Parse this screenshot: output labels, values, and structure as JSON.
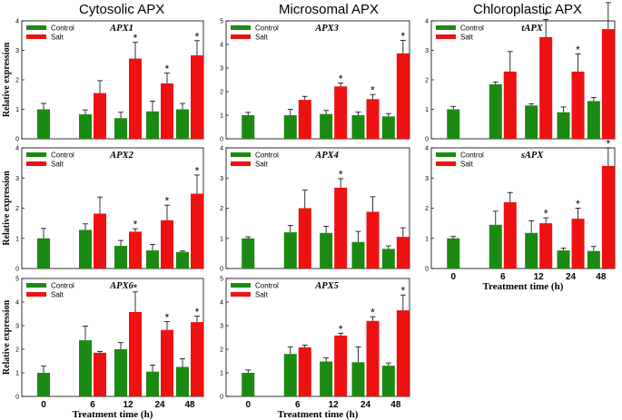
{
  "figure": {
    "column_titles": [
      "Cytosolic APX",
      "Microsomal APX",
      "Chloroplastic APX"
    ],
    "colors": {
      "control": "#1a8a12",
      "salt": "#ee1111",
      "axis": "#000000"
    }
  },
  "chart_data": [
    {
      "type": "bar",
      "title": "APX1",
      "ylabel": "Relative expression",
      "xlabel": "",
      "categories": [
        "0",
        "6",
        "12",
        "24",
        "48"
      ],
      "ylim": [
        0,
        4
      ],
      "yticks": [
        0,
        1,
        2,
        3,
        4
      ],
      "legend": "top-left",
      "show_x_ticks": false,
      "series": [
        {
          "name": "Control",
          "values": [
            1.0,
            0.83,
            0.7,
            0.93,
            1.0
          ],
          "errors": [
            0.2,
            0.15,
            0.2,
            0.35,
            0.2
          ]
        },
        {
          "name": "Salt",
          "values": [
            null,
            1.55,
            2.72,
            1.88,
            2.83
          ],
          "errors": [
            null,
            0.42,
            0.55,
            0.35,
            0.5
          ]
        }
      ],
      "significant": [
        false,
        false,
        true,
        true,
        true
      ]
    },
    {
      "type": "bar",
      "title": "APX3",
      "ylabel": "",
      "xlabel": "",
      "categories": [
        "0",
        "6",
        "12",
        "24",
        "48"
      ],
      "ylim": [
        0,
        5
      ],
      "yticks": [
        0,
        1,
        2,
        3,
        4,
        5
      ],
      "legend": "top-left",
      "show_x_ticks": false,
      "series": [
        {
          "name": "Control",
          "values": [
            1.0,
            1.0,
            1.05,
            1.0,
            0.95
          ],
          "errors": [
            0.12,
            0.25,
            0.15,
            0.13,
            0.12
          ]
        },
        {
          "name": "Salt",
          "values": [
            null,
            1.65,
            2.22,
            1.68,
            3.62
          ],
          "errors": [
            null,
            0.15,
            0.15,
            0.2,
            0.55
          ]
        }
      ],
      "significant": [
        false,
        false,
        true,
        true,
        true
      ]
    },
    {
      "type": "bar",
      "title": "tAPX",
      "ylabel": "",
      "xlabel": "",
      "categories": [
        "0",
        "6",
        "12",
        "24",
        "48"
      ],
      "ylim": [
        0,
        4
      ],
      "yticks": [
        0,
        1,
        2,
        3,
        4
      ],
      "legend": "top-left",
      "show_x_ticks": false,
      "series": [
        {
          "name": "Control",
          "values": [
            1.0,
            1.85,
            1.13,
            0.9,
            1.28
          ],
          "errors": [
            0.1,
            0.08,
            0.06,
            0.18,
            0.12
          ]
        },
        {
          "name": "Salt",
          "values": [
            null,
            2.28,
            3.45,
            2.28,
            3.72
          ],
          "errors": [
            null,
            0.68,
            0.6,
            0.6,
            0.9
          ]
        }
      ],
      "significant": [
        false,
        false,
        true,
        true,
        true
      ]
    },
    {
      "type": "bar",
      "title": "APX2",
      "ylabel": "Relative expression",
      "xlabel": "",
      "categories": [
        "0",
        "6",
        "12",
        "24",
        "48"
      ],
      "ylim": [
        0,
        4
      ],
      "yticks": [
        0,
        1,
        2,
        3,
        4
      ],
      "legend": "top-left",
      "show_x_ticks": false,
      "series": [
        {
          "name": "Control",
          "values": [
            1.0,
            1.28,
            0.75,
            0.6,
            0.55
          ],
          "errors": [
            0.33,
            0.2,
            0.18,
            0.2,
            0.03
          ]
        },
        {
          "name": "Salt",
          "values": [
            null,
            1.82,
            1.22,
            1.6,
            2.48
          ],
          "errors": [
            null,
            0.55,
            0.1,
            0.5,
            0.62
          ]
        }
      ],
      "significant": [
        false,
        false,
        true,
        true,
        true
      ]
    },
    {
      "type": "bar",
      "title": "APX4",
      "ylabel": "",
      "xlabel": "",
      "categories": [
        "0",
        "6",
        "12",
        "24",
        "48"
      ],
      "ylim": [
        0,
        4
      ],
      "yticks": [
        0,
        1,
        2,
        3,
        4
      ],
      "legend": "top-left",
      "show_x_ticks": false,
      "series": [
        {
          "name": "Control",
          "values": [
            1.0,
            1.2,
            1.18,
            0.88,
            0.65
          ],
          "errors": [
            0.05,
            0.23,
            0.22,
            0.35,
            0.1
          ]
        },
        {
          "name": "Salt",
          "values": [
            null,
            2.0,
            2.68,
            1.88,
            1.05
          ],
          "errors": [
            null,
            0.6,
            0.3,
            0.5,
            0.3
          ]
        }
      ],
      "significant": [
        false,
        false,
        true,
        false,
        false
      ]
    },
    {
      "type": "bar",
      "title": "sAPX",
      "ylabel": "",
      "xlabel": "Treatment time (h)",
      "categories": [
        "0",
        "6",
        "12",
        "24",
        "48"
      ],
      "ylim": [
        0,
        4
      ],
      "yticks": [
        0,
        1,
        2,
        3,
        4
      ],
      "legend": "top-left",
      "show_x_ticks": true,
      "series": [
        {
          "name": "Control",
          "values": [
            1.0,
            1.45,
            1.18,
            0.6,
            0.58
          ],
          "errors": [
            0.06,
            0.45,
            0.4,
            0.08,
            0.15
          ]
        },
        {
          "name": "Salt",
          "values": [
            null,
            2.2,
            1.5,
            1.65,
            3.4
          ],
          "errors": [
            null,
            0.32,
            0.18,
            0.35,
            0.6
          ]
        }
      ],
      "significant": [
        false,
        false,
        true,
        true,
        true
      ]
    },
    {
      "type": "bar",
      "title": "APX6",
      "ylabel": "Relative expression",
      "xlabel": "Treatment time (h)",
      "categories": [
        "0",
        "6",
        "12",
        "24",
        "48"
      ],
      "ylim": [
        0,
        5
      ],
      "yticks": [
        0,
        1,
        2,
        3,
        4,
        5
      ],
      "legend": "top-left",
      "show_x_ticks": true,
      "series": [
        {
          "name": "Control",
          "values": [
            1.0,
            2.38,
            2.0,
            1.05,
            1.25
          ],
          "errors": [
            0.28,
            0.6,
            0.28,
            0.28,
            0.35
          ]
        },
        {
          "name": "Salt",
          "values": [
            null,
            1.85,
            3.58,
            2.82,
            3.15
          ],
          "errors": [
            null,
            0.05,
            0.85,
            0.35,
            0.25
          ]
        }
      ],
      "significant": [
        false,
        false,
        true,
        true,
        true
      ]
    },
    {
      "type": "bar",
      "title": "APX5",
      "ylabel": "",
      "xlabel": "Treatment time (h)",
      "categories": [
        "0",
        "6",
        "12",
        "24",
        "48"
      ],
      "ylim": [
        0,
        5
      ],
      "yticks": [
        0,
        1,
        2,
        3,
        4,
        5
      ],
      "legend": "top-left",
      "show_x_ticks": true,
      "series": [
        {
          "name": "Control",
          "values": [
            1.0,
            1.8,
            1.48,
            1.45,
            1.3
          ],
          "errors": [
            0.12,
            0.3,
            0.15,
            0.65,
            0.12
          ]
        },
        {
          "name": "Salt",
          "values": [
            null,
            2.08,
            2.58,
            3.2,
            3.65
          ],
          "errors": [
            null,
            0.1,
            0.1,
            0.18,
            0.65
          ]
        }
      ],
      "significant": [
        false,
        false,
        true,
        true,
        true
      ]
    }
  ]
}
